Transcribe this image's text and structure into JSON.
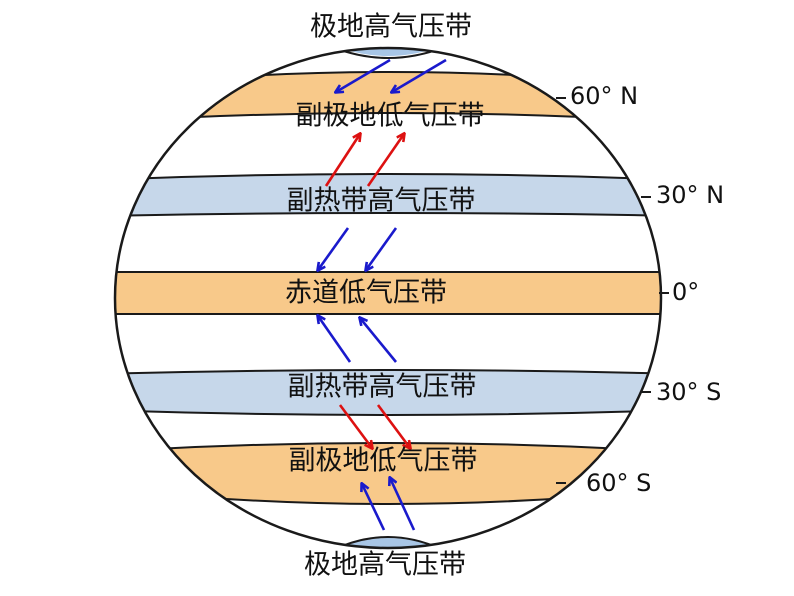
{
  "belts": [
    {
      "id": "north-polar-high",
      "label": "极地高气压带",
      "pressure": "high"
    },
    {
      "id": "north-subpolar-low",
      "label": "副极地低气压带",
      "pressure": "low"
    },
    {
      "id": "north-subtropical-high",
      "label": "副热带高气压带",
      "pressure": "high"
    },
    {
      "id": "equatorial-low",
      "label": "赤道低气压带",
      "pressure": "low"
    },
    {
      "id": "south-subtropical-high",
      "label": "副热带高气压带",
      "pressure": "high"
    },
    {
      "id": "south-subpolar-low",
      "label": "副极地低气压带",
      "pressure": "low"
    },
    {
      "id": "south-polar-high",
      "label": "极地高气压带",
      "pressure": "high"
    }
  ],
  "latitudes": {
    "n60": "60° N",
    "n30": "30° N",
    "equator": "0°",
    "s30": "30° S",
    "s60": "60° S"
  },
  "colors": {
    "high_pressure_fill": "#c6d7ea",
    "low_pressure_fill": "#f8c98a",
    "polar_cap_fill": "#a8c6e6",
    "outline": "#1a1a1a",
    "cold_wind_arrow": "#1a1acc",
    "warm_wind_arrow": "#dd1111"
  },
  "wind_arrows": [
    {
      "id": "polar-easterly-north",
      "color_role": "cold"
    },
    {
      "id": "westerly-north",
      "color_role": "warm"
    },
    {
      "id": "trade-wind-north",
      "color_role": "cold"
    },
    {
      "id": "trade-wind-south",
      "color_role": "cold"
    },
    {
      "id": "westerly-south",
      "color_role": "warm"
    },
    {
      "id": "polar-easterly-south",
      "color_role": "cold"
    }
  ]
}
